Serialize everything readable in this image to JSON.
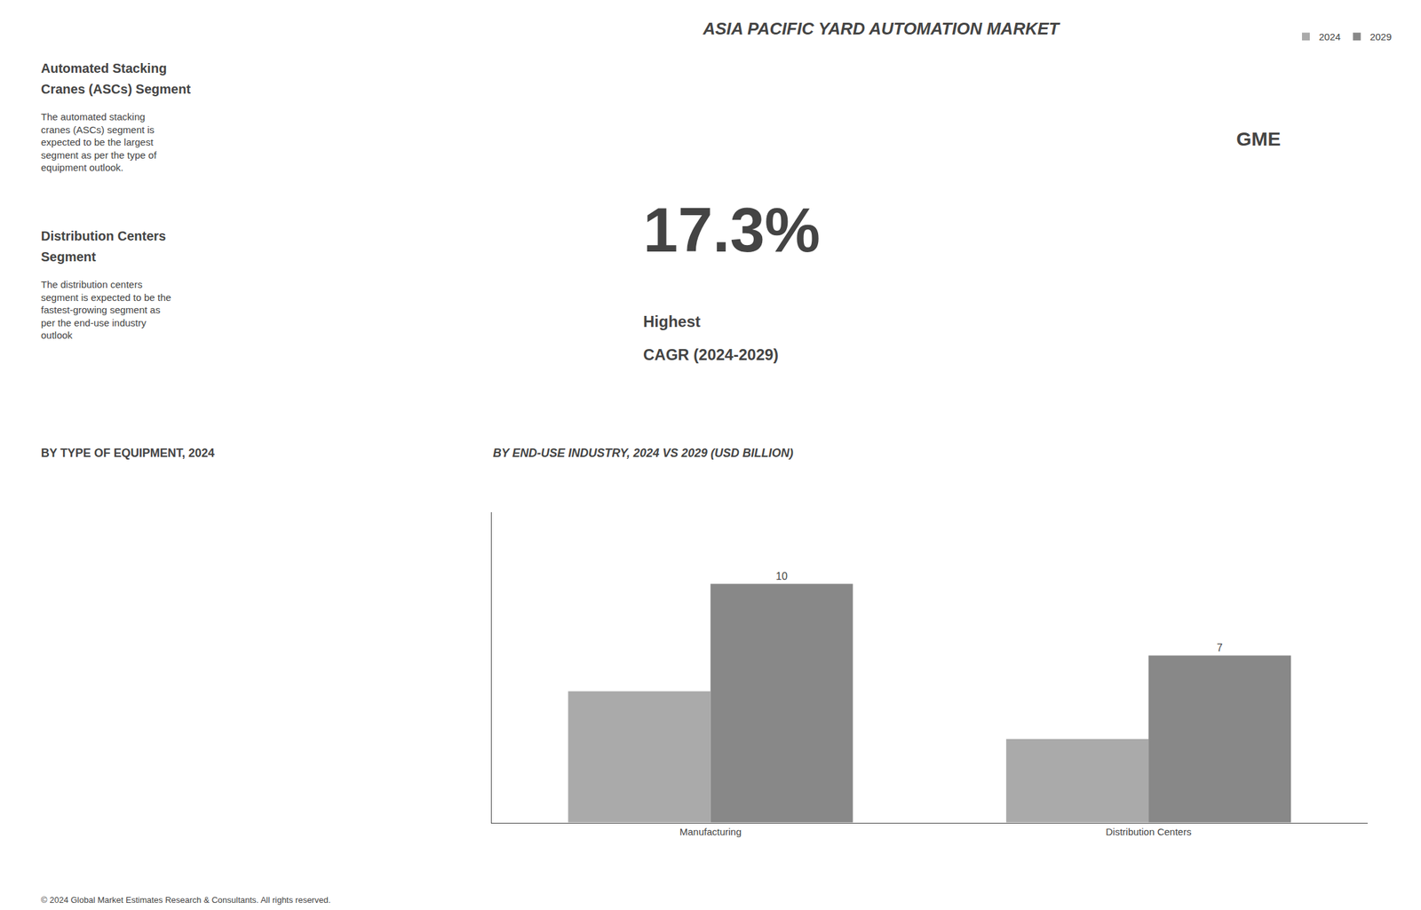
{
  "chart_data": {
    "type": "bar",
    "title": "ASIA PACIFIC YARD AUTOMATION MARKET",
    "subtitle": "BY END-USE INDUSTRY, 2024 VS 2029 (USD BILLION)",
    "categories": [
      "Manufacturing",
      "Distribution Centers"
    ],
    "series": [
      {
        "name": "2024",
        "color": "#aaaaaa",
        "values": [
          5.5,
          3.5
        ]
      },
      {
        "name": "2029",
        "color": "#888888",
        "values": [
          10.0,
          7.0
        ],
        "data_labels": true
      }
    ],
    "ylim": [
      0,
      13
    ],
    "tick_labels": "x",
    "grid": false,
    "legend": "upper right",
    "annotations": [
      "17.3%",
      "Highest",
      "CAGR (2024-2029)",
      "Automated Stacking",
      "Cranes (ASCs) Segment",
      "The automated stacking\ncranes (ASCs) segment is\nexpected to be the largest\nsegment as per the type of\nequipment outlook.",
      "Distribution Centers",
      "Segment",
      "The distribution centers\nsegment is expected to be the\nfastest-growing segment as\nper the end-use industry\noutlook",
      "BY TYPE OF EQUIPMENT, 2024",
      "GME",
      "© 2024 Global Market Estimates Research & Consultants. All rights reserved."
    ]
  }
}
